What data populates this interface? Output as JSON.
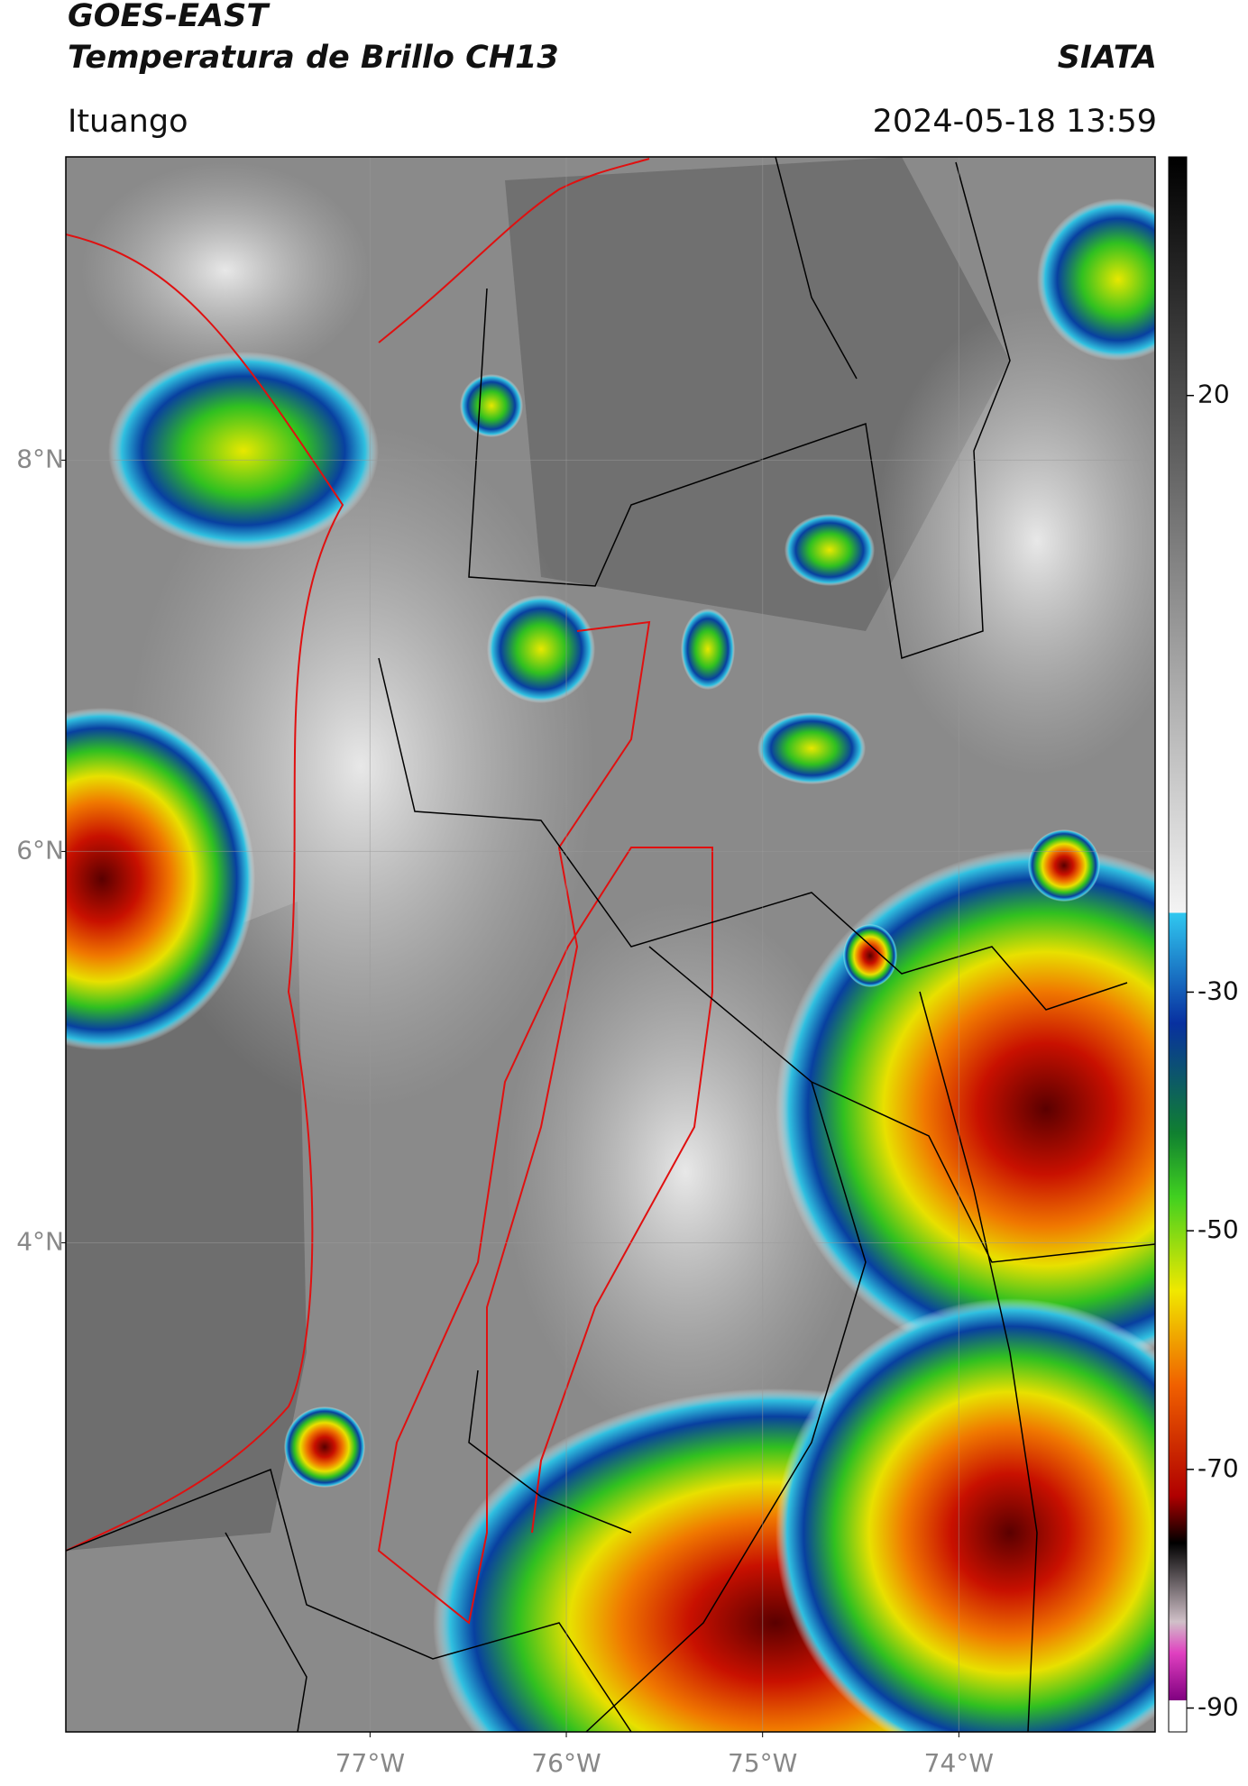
{
  "header": {
    "product": "GOES-EAST",
    "title": "Temperatura de Brillo CH13",
    "org": "SIATA",
    "region": "Ituango",
    "datetime": "2024-05-18 13:59"
  },
  "map": {
    "lonlim": [
      -78.55,
      -73.0
    ],
    "latlim": [
      1.5,
      9.55
    ],
    "lat_ticks": [
      {
        "value": 8,
        "label": "8°N"
      },
      {
        "value": 6,
        "label": "6°N"
      },
      {
        "value": 4,
        "label": "4°N"
      }
    ],
    "lon_ticks": [
      {
        "value": -77,
        "label": "77°W"
      },
      {
        "value": -76,
        "label": "76°W"
      },
      {
        "value": -75,
        "label": "75°W"
      },
      {
        "value": -74,
        "label": "74°W"
      }
    ],
    "grid": true
  },
  "colorbar": {
    "clim": [
      -92,
      40
    ],
    "ticks": [
      20,
      -30,
      -50,
      -70,
      -90
    ]
  }
}
